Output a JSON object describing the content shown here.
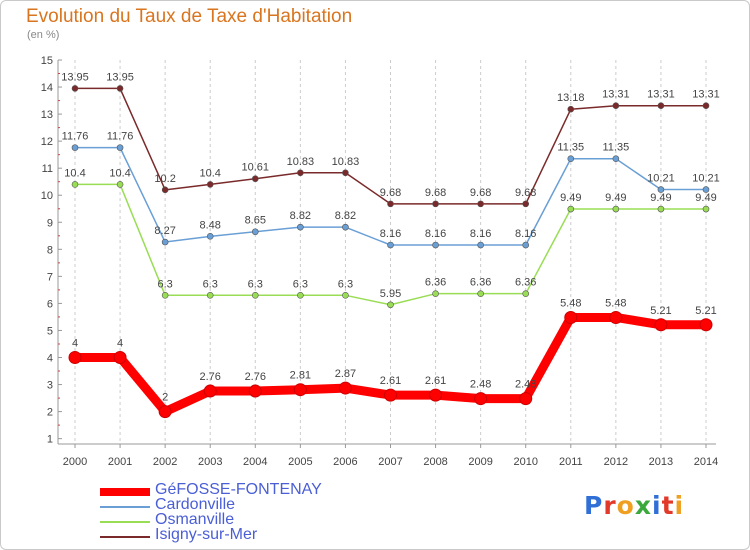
{
  "header": {
    "title": "Evolution du Taux de Taxe d'Habitation",
    "subtitle": "(en %)"
  },
  "chart_data": {
    "type": "line",
    "title": "Evolution du Taux de Taxe d'Habitation",
    "subtitle": "(en %)",
    "xlabel": "",
    "ylabel": "",
    "x": [
      "2000",
      "2001",
      "2002",
      "2003",
      "2004",
      "2005",
      "2006",
      "2007",
      "2008",
      "2009",
      "2010",
      "2011",
      "2012",
      "2013",
      "2014"
    ],
    "ylim": [
      1,
      15
    ],
    "yticks": [
      1,
      2,
      3,
      4,
      5,
      6,
      7,
      8,
      9,
      10,
      11,
      12,
      13,
      14,
      15
    ],
    "grid": "vertical dashed",
    "legend_position": "bottom-left",
    "series": [
      {
        "name": "GéFOSSE-FONTENAY",
        "color": "#ff0000",
        "emphasis": true,
        "values": [
          4,
          4,
          2,
          2.76,
          2.76,
          2.81,
          2.87,
          2.61,
          2.61,
          2.48,
          2.48,
          5.48,
          5.48,
          5.21,
          5.21
        ],
        "labels": [
          "4",
          "4",
          "2",
          "2.76",
          "2.76",
          "2.81",
          "2.87",
          "2.61",
          "2.61",
          "2.48",
          "2.48",
          "5.48",
          "5.48",
          "5.21",
          "5.21"
        ]
      },
      {
        "name": "Cardonville",
        "color": "#6a9fd6",
        "values": [
          11.76,
          11.76,
          8.27,
          8.48,
          8.65,
          8.82,
          8.82,
          8.16,
          8.16,
          8.16,
          8.16,
          11.35,
          11.35,
          10.21,
          10.21
        ],
        "labels": [
          "11.76",
          "11.76",
          "8.27",
          "8.48",
          "8.65",
          "8.82",
          "8.82",
          "8.16",
          "8.16",
          "8.16",
          "8.16",
          "11.35",
          "11.35",
          "10.21",
          "10.21"
        ]
      },
      {
        "name": "Osmanville",
        "color": "#99dd55",
        "values": [
          10.4,
          10.4,
          6.3,
          6.3,
          6.3,
          6.3,
          6.3,
          5.95,
          6.36,
          6.36,
          6.36,
          9.49,
          9.49,
          9.49,
          9.49
        ],
        "labels": [
          "10.4",
          "10.4",
          "6.3",
          "6.3",
          "6.3",
          "6.3",
          "6.3",
          "5.95",
          "6.36",
          "6.36",
          "6.36",
          "9.49",
          "9.49",
          "9.49",
          "9.49"
        ]
      },
      {
        "name": "Isigny-sur-Mer",
        "color": "#7a2a2a",
        "values": [
          13.95,
          13.95,
          10.2,
          10.4,
          10.61,
          10.83,
          10.83,
          9.68,
          9.68,
          9.68,
          9.68,
          13.18,
          13.31,
          13.31,
          13.31
        ],
        "labels": [
          "13.95",
          "13.95",
          "10.2",
          "10.4",
          "10.61",
          "10.83",
          "10.83",
          "9.68",
          "9.68",
          "9.68",
          "9.68",
          "13.18",
          "13.31",
          "13.31",
          "13.31"
        ]
      }
    ]
  },
  "logo": {
    "text": "Proxiti"
  }
}
